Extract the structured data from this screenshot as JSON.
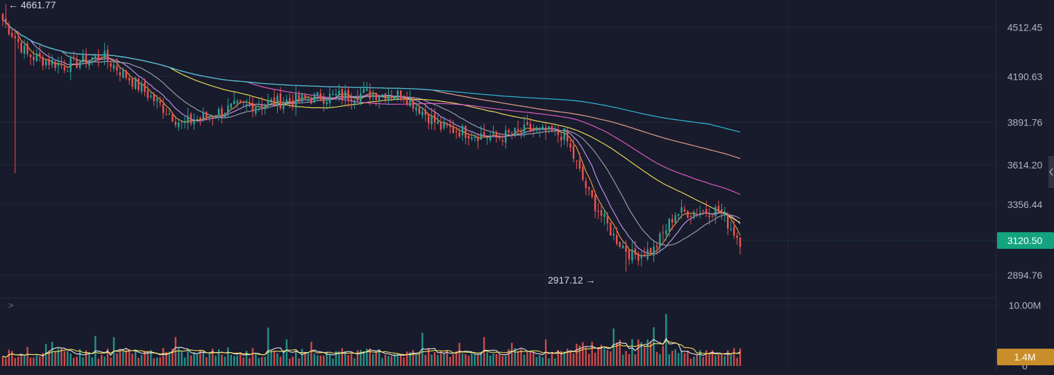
{
  "chart_data": {
    "type": "candlestick",
    "price_axis": {
      "ticks": [
        4512.45,
        4190.63,
        3891.76,
        3614.2,
        3356.44,
        2894.76
      ],
      "tick_labels": [
        "4512.45",
        "4190.63",
        "3891.76",
        "3614.20",
        "3356.44",
        "2894.76"
      ],
      "ylim": [
        2745,
        4690
      ]
    },
    "current_price": {
      "value": 3120.5,
      "label": "3120.50",
      "color": "#13a37f"
    },
    "high_marker": {
      "value": 4661.77,
      "label": "4661.77",
      "arrow": "←"
    },
    "low_marker": {
      "value": 2917.12,
      "label": "2917.12",
      "arrow": "→"
    },
    "volume_axis": {
      "ticks": [
        10000000,
        0
      ],
      "tick_labels": [
        "10.00M",
        "0"
      ],
      "ylim": [
        0,
        11000000
      ]
    },
    "current_volume": {
      "value": 1400000,
      "label": "1.4M",
      "color": "#c98d2a"
    },
    "candle_count": 240,
    "moving_averages": [
      {
        "color": "#f39c3d",
        "values_note": "short MA"
      },
      {
        "color": "#c59bf0"
      },
      {
        "color": "#9fa3b0"
      },
      {
        "color": "#f5e35a"
      },
      {
        "color": "#e85ec7"
      },
      {
        "color": "#f2a58f"
      },
      {
        "color": "#33c2e0"
      }
    ],
    "colors": {
      "up": "#26a69a",
      "down": "#ef5350",
      "background": "#181b2c",
      "grid": "#232739",
      "axis_text": "#b2b5be"
    },
    "grid": true
  },
  "ui": {
    "collapse_icon": "chevron-right-icon",
    "collapse_glyph": ">",
    "scroll_handle_icon": "chevron-left-icon"
  }
}
